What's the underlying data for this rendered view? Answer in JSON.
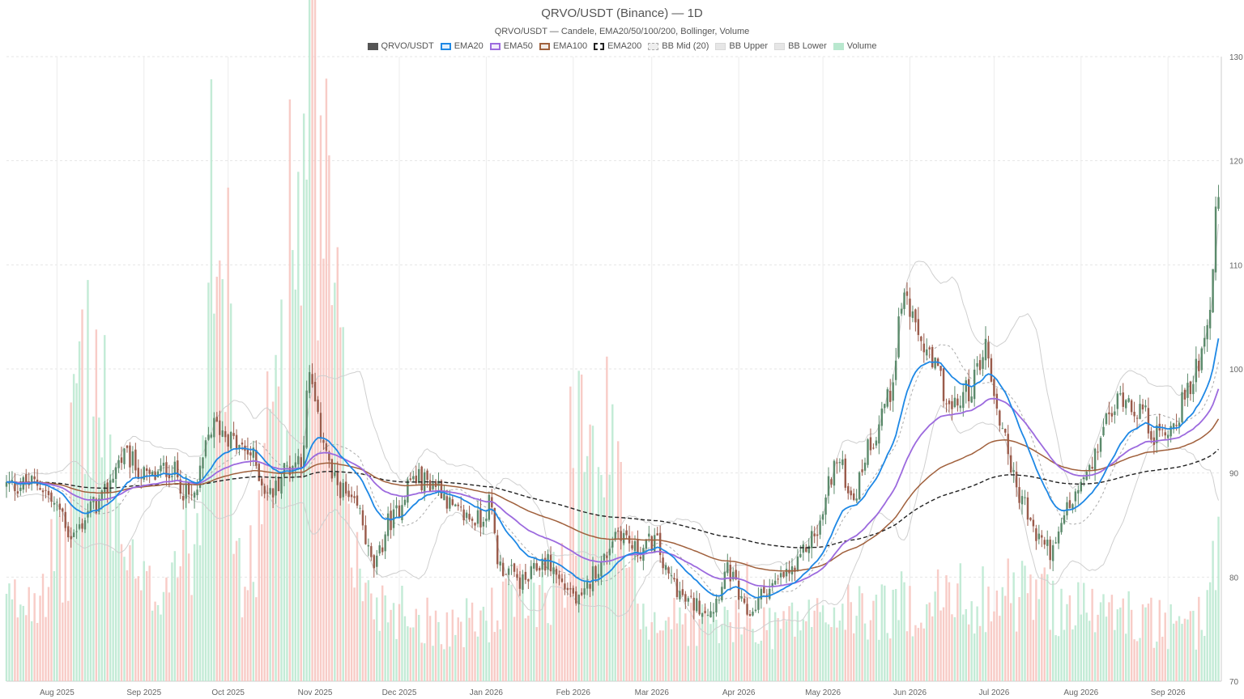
{
  "chart_data": {
    "type": "candlestick",
    "title": "QRVO/USDT (Binance) — 1D",
    "subtitle": "QRVO/USDT — Candele, EMA20/50/100/200, Bollinger, Volume",
    "ylim": [
      70,
      130
    ],
    "y_ticks": [
      70,
      80,
      90,
      100,
      110,
      120,
      130
    ],
    "x_range": [
      "2025-07-14",
      "2026-09-20"
    ],
    "x_ticks": [
      {
        "date": "2025-08-01",
        "label": "Aug 2025"
      },
      {
        "date": "2025-09-01",
        "label": "Sep 2025"
      },
      {
        "date": "2025-10-01",
        "label": "Oct 2025"
      },
      {
        "date": "2025-11-01",
        "label": "Nov 2025"
      },
      {
        "date": "2025-12-01",
        "label": "Dec 2025"
      },
      {
        "date": "2026-01-01",
        "label": "Jan 2026"
      },
      {
        "date": "2026-02-01",
        "label": "Feb 2026"
      },
      {
        "date": "2026-03-01",
        "label": "Mar 2026"
      },
      {
        "date": "2026-04-01",
        "label": "Apr 2026"
      },
      {
        "date": "2026-05-01",
        "label": "May 2026"
      },
      {
        "date": "2026-06-01",
        "label": "Jun 2026"
      },
      {
        "date": "2026-07-01",
        "label": "Jul 2026"
      },
      {
        "date": "2026-08-01",
        "label": "Aug 2026"
      },
      {
        "date": "2026-09-01",
        "label": "Sep 2026"
      }
    ],
    "legend": [
      {
        "name": "QRVO/USDT",
        "key": "price",
        "color": "#555555",
        "style": "filled"
      },
      {
        "name": "EMA20",
        "key": "ema20",
        "color": "#1e88e5",
        "style": "outline"
      },
      {
        "name": "EMA50",
        "key": "ema50",
        "color": "#9c6ade",
        "style": "outline"
      },
      {
        "name": "EMA100",
        "key": "ema100",
        "color": "#a0603c",
        "style": "outline"
      },
      {
        "name": "EMA200",
        "key": "ema200",
        "color": "#222222",
        "style": "dashed"
      },
      {
        "name": "BB Mid (20)",
        "key": "bbmid",
        "color": "#bbbbbb",
        "style": "dotted"
      },
      {
        "name": "BB Upper",
        "key": "bbupper",
        "color": "#cccccc",
        "style": "box"
      },
      {
        "name": "BB Lower",
        "key": "bblower",
        "color": "#cccccc",
        "style": "box"
      },
      {
        "name": "Volume",
        "key": "volume",
        "color": "#b9e8cf",
        "style": "filled"
      }
    ],
    "colors": {
      "up": "#5b8a6b",
      "down": "#9a5b4b",
      "vol_up": "#b9e8cf",
      "vol_down": "#f7c3bd"
    },
    "price_anchors": [
      [
        "2025-07-14",
        88.8
      ],
      [
        "2025-07-25",
        89.0
      ],
      [
        "2025-08-02",
        86.5
      ],
      [
        "2025-08-06",
        84.0
      ],
      [
        "2025-08-15",
        87.0
      ],
      [
        "2025-08-25",
        91.5
      ],
      [
        "2025-09-03",
        89.5
      ],
      [
        "2025-09-10",
        90.5
      ],
      [
        "2025-09-18",
        87.5
      ],
      [
        "2025-09-26",
        94.5
      ],
      [
        "2025-10-08",
        92.0
      ],
      [
        "2025-10-16",
        88.0
      ],
      [
        "2025-10-22",
        90.5
      ],
      [
        "2025-10-27",
        91.5
      ],
      [
        "2025-10-30",
        99.0
      ],
      [
        "2025-11-03",
        94.0
      ],
      [
        "2025-11-08",
        89.0
      ],
      [
        "2025-11-16",
        86.5
      ],
      [
        "2025-11-22",
        81.0
      ],
      [
        "2025-11-28",
        85.5
      ],
      [
        "2025-12-06",
        89.5
      ],
      [
        "2025-12-14",
        89.0
      ],
      [
        "2025-12-22",
        86.0
      ],
      [
        "2025-12-30",
        85.5
      ],
      [
        "2026-01-02",
        87.0
      ],
      [
        "2026-01-06",
        81.0
      ],
      [
        "2026-01-14",
        79.5
      ],
      [
        "2026-01-22",
        81.5
      ],
      [
        "2026-01-30",
        79.0
      ],
      [
        "2026-02-03",
        77.5
      ],
      [
        "2026-02-10",
        81.0
      ],
      [
        "2026-02-17",
        84.5
      ],
      [
        "2026-02-24",
        82.5
      ],
      [
        "2026-03-02",
        83.5
      ],
      [
        "2026-03-07",
        80.0
      ],
      [
        "2026-03-14",
        77.5
      ],
      [
        "2026-03-22",
        77.0
      ],
      [
        "2026-03-28",
        80.5
      ],
      [
        "2026-04-04",
        76.5
      ],
      [
        "2026-04-12",
        79.0
      ],
      [
        "2026-04-20",
        80.5
      ],
      [
        "2026-04-28",
        84.0
      ],
      [
        "2026-05-06",
        91.0
      ],
      [
        "2026-05-12",
        88.0
      ],
      [
        "2026-05-18",
        93.0
      ],
      [
        "2026-05-24",
        97.0
      ],
      [
        "2026-05-30",
        107.0
      ],
      [
        "2026-06-04",
        103.0
      ],
      [
        "2026-06-10",
        100.0
      ],
      [
        "2026-06-16",
        96.0
      ],
      [
        "2026-06-22",
        98.0
      ],
      [
        "2026-06-28",
        102.0
      ],
      [
        "2026-07-03",
        95.0
      ],
      [
        "2026-07-10",
        88.0
      ],
      [
        "2026-07-16",
        84.0
      ],
      [
        "2026-07-22",
        82.5
      ],
      [
        "2026-07-28",
        87.0
      ],
      [
        "2026-08-04",
        90.0
      ],
      [
        "2026-08-10",
        95.0
      ],
      [
        "2026-08-16",
        97.5
      ],
      [
        "2026-08-22",
        96.0
      ],
      [
        "2026-08-28",
        93.5
      ],
      [
        "2026-09-02",
        94.5
      ],
      [
        "2026-09-08",
        97.5
      ],
      [
        "2026-09-12",
        101.0
      ],
      [
        "2026-09-16",
        106.0
      ],
      [
        "2026-09-19",
        117.0
      ]
    ],
    "volume_axis_max": 1000,
    "volume_anchors": [
      [
        "2025-07-14",
        120
      ],
      [
        "2025-08-04",
        200
      ],
      [
        "2025-08-09",
        510
      ],
      [
        "2025-09-01",
        140
      ],
      [
        "2025-09-20",
        240
      ],
      [
        "2025-09-26",
        980
      ],
      [
        "2025-10-06",
        150
      ],
      [
        "2025-10-30",
        820
      ],
      [
        "2025-11-20",
        130
      ],
      [
        "2025-12-20",
        90
      ],
      [
        "2026-01-30",
        160
      ],
      [
        "2026-02-04",
        470
      ],
      [
        "2026-03-02",
        100
      ],
      [
        "2026-04-03",
        90
      ],
      [
        "2026-05-15",
        110
      ],
      [
        "2026-06-10",
        130
      ],
      [
        "2026-07-10",
        140
      ],
      [
        "2026-08-10",
        110
      ],
      [
        "2026-09-10",
        80
      ],
      [
        "2026-09-19",
        200
      ]
    ],
    "volume_spikes": [
      [
        "2025-08-07",
        490
      ],
      [
        "2025-09-25",
        960
      ],
      [
        "2025-10-29",
        800
      ],
      [
        "2026-01-31",
        470
      ],
      [
        "2026-02-01",
        340
      ],
      [
        "2025-11-21",
        140
      ],
      [
        "2026-04-04",
        190
      ]
    ]
  }
}
